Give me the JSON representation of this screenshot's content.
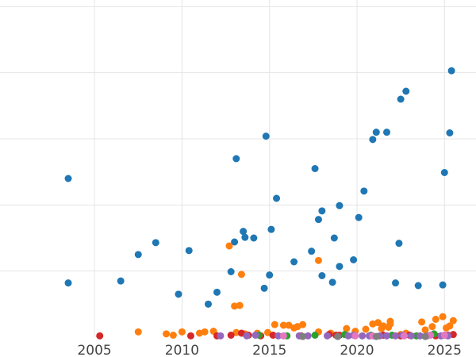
{
  "chart_data": {
    "type": "scatter",
    "title": "",
    "xlabel": "",
    "ylabel": "",
    "xlim": [
      1999.6,
      2026.8
    ],
    "ylim": [
      0,
      5.1
    ],
    "x_ticks": [
      2005,
      2010,
      2015,
      2020,
      2025
    ],
    "x_tick_labels": [
      "2005",
      "2010",
      "2015",
      "2020",
      "2025"
    ],
    "y_gridlines": [
      1,
      2,
      3,
      4,
      5
    ],
    "grid": "on",
    "legend": "none",
    "series": [
      {
        "color": "#1f77b4",
        "points": [
          [
            2003.5,
            2.4
          ],
          [
            2003.5,
            0.82
          ],
          [
            2006.5,
            0.85
          ],
          [
            2007.5,
            1.25
          ],
          [
            2008.5,
            1.43
          ],
          [
            2009.8,
            0.65
          ],
          [
            2010.4,
            1.31
          ],
          [
            2011.5,
            0.5
          ],
          [
            2012.0,
            0.68
          ],
          [
            2012.8,
            0.99
          ],
          [
            2013.0,
            1.44
          ],
          [
            2013.1,
            2.7
          ],
          [
            2013.5,
            1.6
          ],
          [
            2013.6,
            1.51
          ],
          [
            2014.1,
            1.5
          ],
          [
            2014.7,
            0.74
          ],
          [
            2014.8,
            3.04
          ],
          [
            2015.0,
            0.94
          ],
          [
            2015.1,
            1.63
          ],
          [
            2015.4,
            2.1
          ],
          [
            2016.4,
            1.14
          ],
          [
            2017.4,
            1.3
          ],
          [
            2017.6,
            2.55
          ],
          [
            2017.8,
            1.78
          ],
          [
            2018.0,
            0.93
          ],
          [
            2018.0,
            1.91
          ],
          [
            2018.6,
            0.83
          ],
          [
            2018.7,
            1.5
          ],
          [
            2019.0,
            1.07
          ],
          [
            2019.0,
            1.99
          ],
          [
            2019.8,
            1.17
          ],
          [
            2020.1,
            1.81
          ],
          [
            2020.4,
            2.21
          ],
          [
            2020.9,
            2.99
          ],
          [
            2021.1,
            3.1
          ],
          [
            2021.7,
            3.1
          ],
          [
            2022.2,
            0.82
          ],
          [
            2022.4,
            1.42
          ],
          [
            2022.5,
            3.6
          ],
          [
            2022.8,
            3.72
          ],
          [
            2023.5,
            0.78
          ],
          [
            2024.9,
            0.79
          ],
          [
            2025.0,
            2.49
          ],
          [
            2025.3,
            3.09
          ],
          [
            2025.4,
            4.03
          ]
        ]
      },
      {
        "color": "#ff7f0e",
        "points": [
          [
            2007.5,
            0.08
          ],
          [
            2009.1,
            0.05
          ],
          [
            2009.5,
            0.03
          ],
          [
            2010.0,
            0.08
          ],
          [
            2011.0,
            0.06
          ],
          [
            2011.3,
            0.08
          ],
          [
            2011.8,
            0.09
          ],
          [
            2012.7,
            1.38
          ],
          [
            2013.0,
            0.47
          ],
          [
            2013.1,
            0.07
          ],
          [
            2013.3,
            0.48
          ],
          [
            2013.4,
            0.95
          ],
          [
            2013.6,
            0.05
          ],
          [
            2014.3,
            0.06
          ],
          [
            2014.9,
            0.07
          ],
          [
            2015.3,
            0.19
          ],
          [
            2015.8,
            0.18
          ],
          [
            2016.1,
            0.18
          ],
          [
            2016.4,
            0.14
          ],
          [
            2016.6,
            0.16
          ],
          [
            2016.9,
            0.19
          ],
          [
            2017.8,
            1.16
          ],
          [
            2017.8,
            0.08
          ],
          [
            2018.5,
            0.06
          ],
          [
            2019.4,
            0.13
          ],
          [
            2019.9,
            0.09
          ],
          [
            2020.5,
            0.12
          ],
          [
            2020.9,
            0.2
          ],
          [
            2021.2,
            0.22
          ],
          [
            2021.4,
            0.13
          ],
          [
            2021.5,
            0.17
          ],
          [
            2021.8,
            0.15
          ],
          [
            2021.9,
            0.2
          ],
          [
            2021.9,
            0.24
          ],
          [
            2022.5,
            0.04
          ],
          [
            2022.8,
            0.06
          ],
          [
            2023.7,
            0.23
          ],
          [
            2023.9,
            0.11
          ],
          [
            2024.3,
            0.16
          ],
          [
            2024.5,
            0.27
          ],
          [
            2024.9,
            0.31
          ],
          [
            2025.1,
            0.14
          ],
          [
            2025.3,
            0.17
          ],
          [
            2025.5,
            0.25
          ]
        ]
      },
      {
        "color": "#d62728",
        "points": [
          [
            2005.3,
            0.02
          ],
          [
            2010.5,
            0.02
          ],
          [
            2012.0,
            0.02
          ],
          [
            2012.8,
            0.03
          ],
          [
            2013.4,
            0.06
          ],
          [
            2013.8,
            0.03
          ],
          [
            2014.5,
            0.02
          ],
          [
            2015.2,
            0.03
          ],
          [
            2016.8,
            0.02
          ],
          [
            2018.4,
            0.04
          ],
          [
            2018.8,
            0.03
          ],
          [
            2019.0,
            0.03
          ],
          [
            2021.5,
            0.03
          ],
          [
            2022.5,
            0.02
          ],
          [
            2023.0,
            0.03
          ],
          [
            2024.5,
            0.02
          ],
          [
            2025.2,
            0.03
          ],
          [
            2025.5,
            0.04
          ]
        ]
      },
      {
        "color": "#2ca02c",
        "points": [
          [
            2014.4,
            0.03
          ],
          [
            2016.0,
            0.02
          ],
          [
            2017.6,
            0.03
          ],
          [
            2019.3,
            0.04
          ],
          [
            2020.8,
            0.03
          ],
          [
            2022.0,
            0.03
          ],
          [
            2023.4,
            0.02
          ],
          [
            2024.4,
            0.05
          ],
          [
            2025.0,
            0.03
          ]
        ]
      },
      {
        "color": "#9467bd",
        "points": [
          [
            2012.2,
            0.02
          ],
          [
            2013.7,
            0.02
          ],
          [
            2014.2,
            0.03
          ],
          [
            2015.5,
            0.02
          ],
          [
            2016.7,
            0.02
          ],
          [
            2017.2,
            0.02
          ],
          [
            2018.3,
            0.02
          ],
          [
            2019.5,
            0.02
          ],
          [
            2019.8,
            0.03
          ],
          [
            2020.3,
            0.02
          ],
          [
            2020.7,
            0.02
          ],
          [
            2021.3,
            0.02
          ],
          [
            2021.7,
            0.02
          ],
          [
            2022.2,
            0.02
          ],
          [
            2022.6,
            0.03
          ],
          [
            2023.1,
            0.02
          ],
          [
            2023.6,
            0.02
          ],
          [
            2024.0,
            0.02
          ],
          [
            2024.8,
            0.02
          ],
          [
            2025.2,
            0.02
          ]
        ]
      },
      {
        "color": "#e377c2",
        "points": [
          [
            2015.8,
            0.02
          ],
          [
            2019.9,
            0.02
          ],
          [
            2020.9,
            0.02
          ],
          [
            2022.7,
            0.02
          ],
          [
            2024.2,
            0.03
          ],
          [
            2025.0,
            0.03
          ]
        ]
      },
      {
        "color": "#7f7f7f",
        "points": [
          [
            2016.9,
            0.01
          ],
          [
            2018.9,
            0.01
          ],
          [
            2021.1,
            0.01
          ],
          [
            2023.9,
            0.01
          ]
        ]
      }
    ]
  }
}
